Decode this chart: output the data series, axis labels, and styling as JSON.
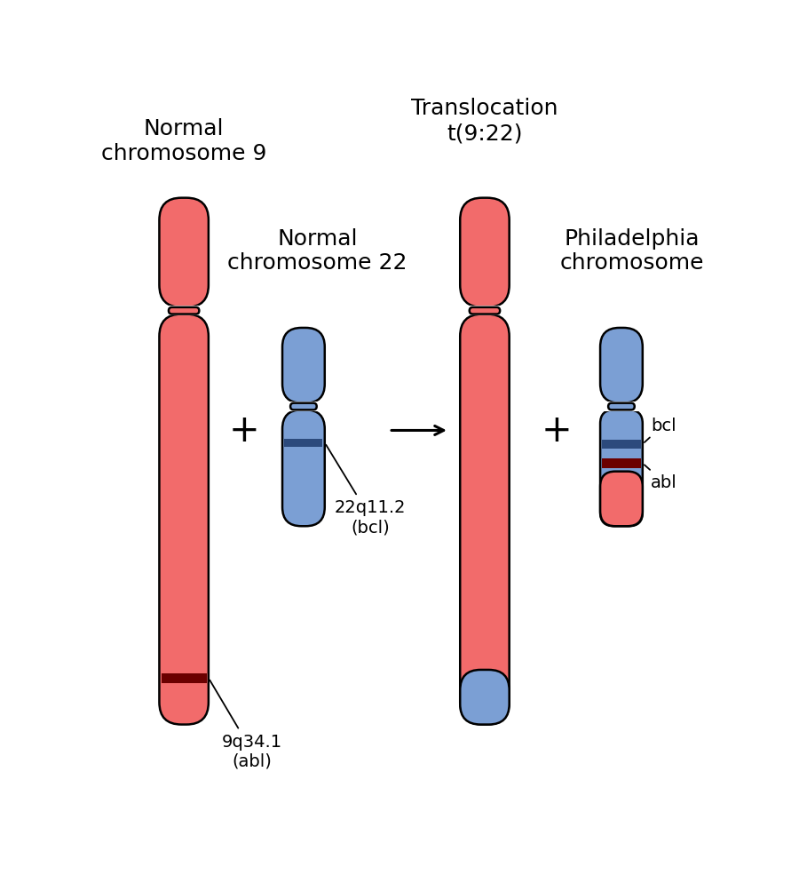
{
  "bg_color": "#ffffff",
  "red_color": "#f26b6b",
  "blue_color": "#7b9fd4",
  "dark_red": "#6b0000",
  "dark_blue": "#2c4a7c",
  "black": "#000000",
  "title1": "Normal\nchromosome 9",
  "title2": "Normal\nchromosome 22",
  "title3": "Translocation\nt(9:22)",
  "title4": "Philadelphia\nchromosome",
  "label_abl": "9q34.1\n(abl)",
  "label_bcl": "22q11.2\n(bcl)",
  "label_bcl_small": "bcl",
  "label_abl_small": "abl",
  "plus_sign": "+",
  "fs_title": 18,
  "fs_label": 14,
  "lw": 1.8
}
